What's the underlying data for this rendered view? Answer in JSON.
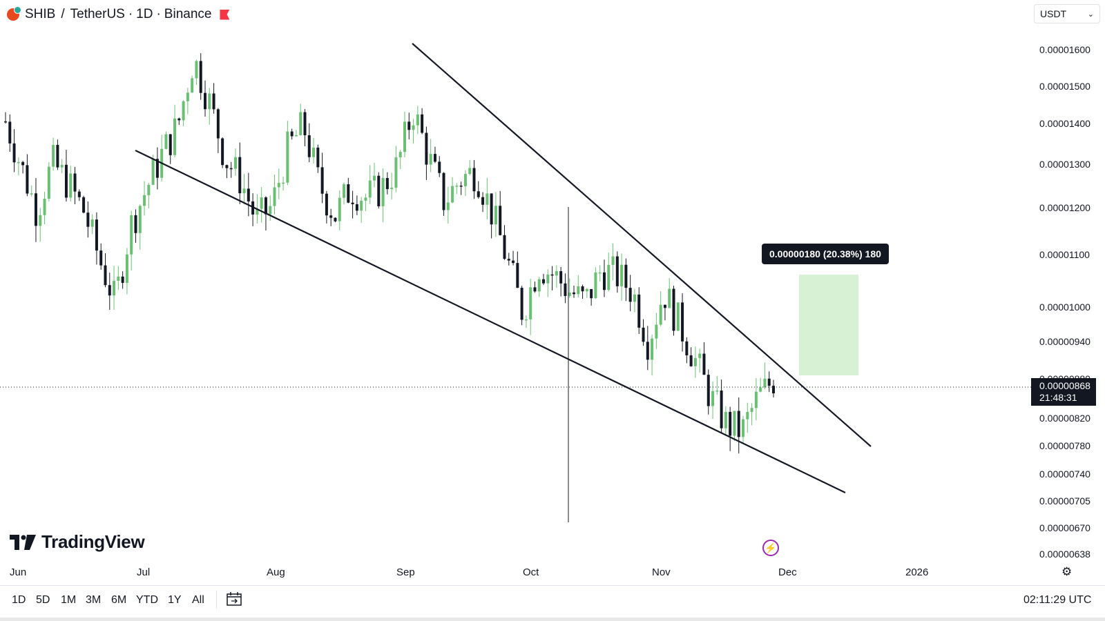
{
  "header": {
    "symbol": "SHIB",
    "separator": "/",
    "quote": "TetherUS",
    "dot1": "·",
    "interval": "1D",
    "dot2": "·",
    "exchange": "Binance",
    "coin_icon": "shib-coin-icon",
    "flag_icon": "flag-icon"
  },
  "currency_select": {
    "value": "USDT",
    "icon": "chevron-down-icon"
  },
  "price_axis": {
    "ticks": [
      "0.00001600",
      "0.00001500",
      "0.00001400",
      "0.00001300",
      "0.00001200",
      "0.00001100",
      "0.00001000",
      "0.00000940",
      "0.00000880",
      "0.00000820",
      "0.00000780",
      "0.00000740",
      "0.00000705",
      "0.00000670",
      "0.00000638"
    ],
    "last_price": "0.00000868",
    "countdown": "21:48:31"
  },
  "time_axis": {
    "ticks": [
      "Jun",
      "Jul",
      "Aug",
      "Sep",
      "Oct",
      "Nov",
      "Dec",
      "2026"
    ]
  },
  "measure": {
    "label": "0.00000180 (20.38%) 180",
    "fill_color": "#d4f0d2"
  },
  "branding": {
    "logo_text": "TradingView",
    "logo_icon": "tradingview-logo-icon"
  },
  "bottom_bar": {
    "ranges": [
      "1D",
      "5D",
      "1M",
      "3M",
      "6M",
      "YTD",
      "1Y",
      "All"
    ],
    "calendar_icon": "calendar-range-icon",
    "clock": "02:11:29 UTC"
  },
  "colors": {
    "up": "#6bbf73",
    "down": "#131722",
    "trendline": "#131722",
    "bg": "#ffffff"
  },
  "chart_data": {
    "type": "candlestick",
    "symbol": "SHIB/USDT",
    "interval": "1D",
    "range": [
      "2025-06",
      "2025-11"
    ],
    "y_scale": "log",
    "ylim": [
      6.2e-06,
      1.65e-05
    ],
    "candles_close_path": [
      1.39e-05,
      1.28e-05,
      1.18e-05,
      1.29e-05,
      1.24e-05,
      1.18e-05,
      1.08e-05,
      1e-05,
      1.15e-05,
      1.23e-05,
      1.31e-05,
      1.38e-05,
      1.56e-05,
      1.44e-05,
      1.3e-05,
      1.25e-05,
      1.16e-05,
      1.19e-05,
      1.32e-05,
      1.38e-05,
      1.24e-05,
      1.17e-05,
      1.23e-05,
      1.21e-05,
      1.23e-05,
      1.28e-05,
      1.42e-05,
      1.3e-05,
      1.2e-05,
      1.25e-05,
      1.27e-05,
      1.18e-05,
      1.08e-05,
      9.8e-06,
      1.07e-05,
      1.05e-05,
      1.02e-05,
      1e-05,
      1.06e-05,
      1.05e-05,
      1.02e-05,
      9.3e-06,
      1.02e-05,
      9.6e-06,
      9e-06,
      8.4e-06,
      8e-06,
      7.9e-06,
      8.4e-06,
      8.68e-06
    ]
  }
}
